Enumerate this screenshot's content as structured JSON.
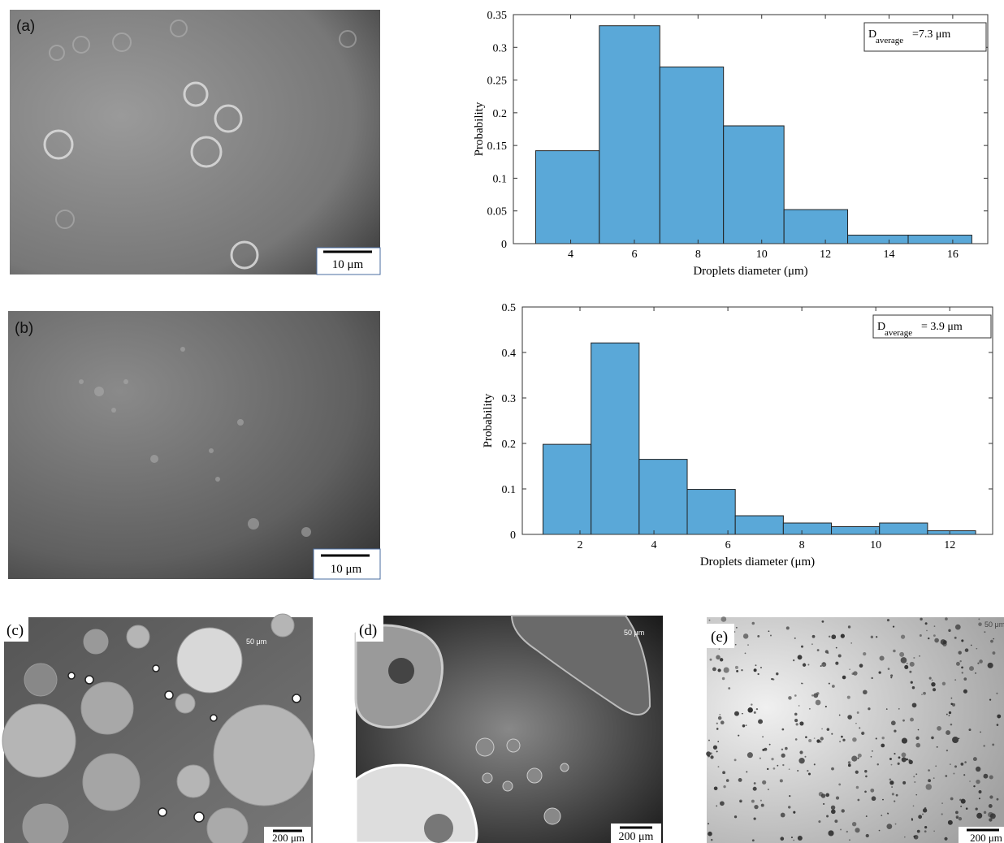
{
  "chart_data": [
    {
      "type": "histogram",
      "xlabel": "Droplets diameter (μm)",
      "ylabel": "Probability",
      "bins": [
        2.9,
        4.9,
        6.8,
        8.8,
        10.7,
        12.7,
        14.6,
        16.6
      ],
      "values": [
        0.142,
        0.333,
        0.27,
        0.18,
        0.052,
        0.013,
        0.013
      ],
      "color": "#5aa8d8",
      "xlim": [
        2.2,
        17.1
      ],
      "ylim": [
        0,
        0.35
      ],
      "xticks": [
        4,
        6,
        8,
        10,
        12,
        14,
        16
      ],
      "yticks": [
        0,
        0.05,
        0.1,
        0.15,
        0.2,
        0.25,
        0.3,
        0.35
      ],
      "annotation": {
        "main": "D",
        "sub": "average",
        "text": "=7.3 μm"
      }
    },
    {
      "type": "histogram",
      "xlabel": "Droplets diameter (μm)",
      "ylabel": "Probability",
      "bins": [
        1.0,
        2.3,
        3.6,
        4.9,
        6.2,
        7.5,
        8.8,
        10.1,
        11.4,
        12.7
      ],
      "values": [
        0.198,
        0.421,
        0.165,
        0.099,
        0.041,
        0.025,
        0.017,
        0.025,
        0.008
      ],
      "color": "#5aa8d8",
      "xlim": [
        0.44,
        13.16
      ],
      "ylim": [
        0,
        0.5
      ],
      "xticks": [
        2,
        4,
        6,
        8,
        10,
        12
      ],
      "yticks": [
        0,
        0.1,
        0.2,
        0.3,
        0.4,
        0.5
      ],
      "annotation": {
        "main": "D",
        "sub": "average",
        "text": "= 3.9 μm"
      }
    }
  ],
  "panels": [
    {
      "label": "(a)",
      "scale": "10 μm"
    },
    {
      "label": "(b)",
      "scale": "10 μm"
    },
    {
      "label": "(c)",
      "scale": "200 μm",
      "inset": "50 μm"
    },
    {
      "label": "(d)",
      "scale": "200 μm",
      "inset": "50 μm"
    },
    {
      "label": "(e)",
      "scale": "200 μm",
      "inset": "50 μm"
    }
  ]
}
